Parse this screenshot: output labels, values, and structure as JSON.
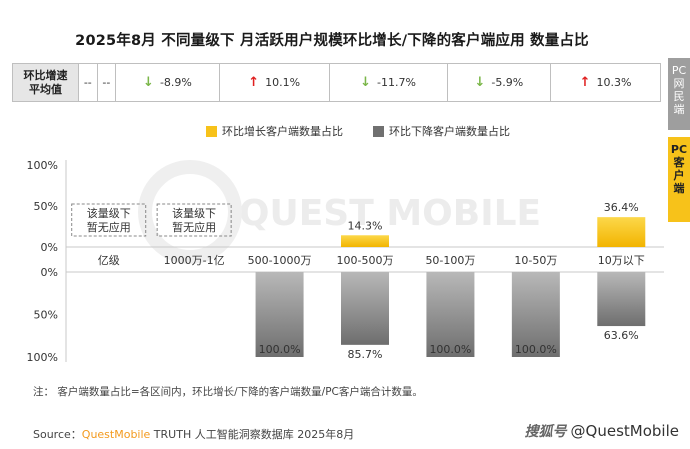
{
  "title": "2025年8月 不同量级下 月活跃用户规模环比增长/下降的客户端应用 数量占比",
  "rates_row": {
    "header_line1": "环比增速",
    "header_line2": "平均值",
    "cells": [
      {
        "text": "--",
        "dir": "none"
      },
      {
        "text": "--",
        "dir": "none"
      },
      {
        "text": "-8.9%",
        "dir": "down"
      },
      {
        "text": "10.1%",
        "dir": "up"
      },
      {
        "text": "-11.7%",
        "dir": "down"
      },
      {
        "text": "-5.9%",
        "dir": "down"
      },
      {
        "text": "10.3%",
        "dir": "up"
      }
    ],
    "down_arrow": "↓",
    "up_arrow": "↑"
  },
  "side_tabs": [
    {
      "label": [
        "PC",
        "网",
        "民",
        "端"
      ]
    },
    {
      "label": [
        "PC",
        "客",
        "户",
        "端"
      ]
    }
  ],
  "chart_data": {
    "type": "bar",
    "categories": [
      "亿级",
      "1000万-1亿",
      "500-1000万",
      "100-500万",
      "50-100万",
      "10-50万",
      "10万以下"
    ],
    "series": [
      {
        "name": "环比增长客户端数量占比",
        "color": "#f7c21a",
        "values": [
          null,
          null,
          0,
          14.3,
          0,
          0,
          36.4
        ],
        "labels": [
          "",
          "",
          "",
          "14.3%",
          "",
          "",
          "36.4%"
        ]
      },
      {
        "name": "环比下降客户端数量占比",
        "color": "#808080",
        "values": [
          null,
          null,
          100.0,
          85.7,
          100.0,
          100.0,
          63.6
        ],
        "labels": [
          "",
          "",
          "100.0%",
          "85.7%",
          "100.0%",
          "100.0%",
          "63.6%"
        ]
      }
    ],
    "upper_ticks": [
      "100%",
      "50%",
      "0%"
    ],
    "lower_ticks": [
      "0%",
      "50%",
      "100%"
    ],
    "ylim": [
      0,
      100
    ],
    "no_app_text": [
      "该量级下",
      "暂无应用"
    ],
    "watermark": "QUEST MOBILE"
  },
  "note": "注：  客户端数量占比=各区间内，环比增长/下降的客户端数量/PC客户端合计数量。",
  "source": {
    "prefix": "Source：",
    "brand": "QuestMobile",
    "rest": " TRUTH 人工智能洞察数据库 2025年8月"
  },
  "credit": {
    "logo": "搜狐号",
    "handle": "@QuestMobile"
  }
}
